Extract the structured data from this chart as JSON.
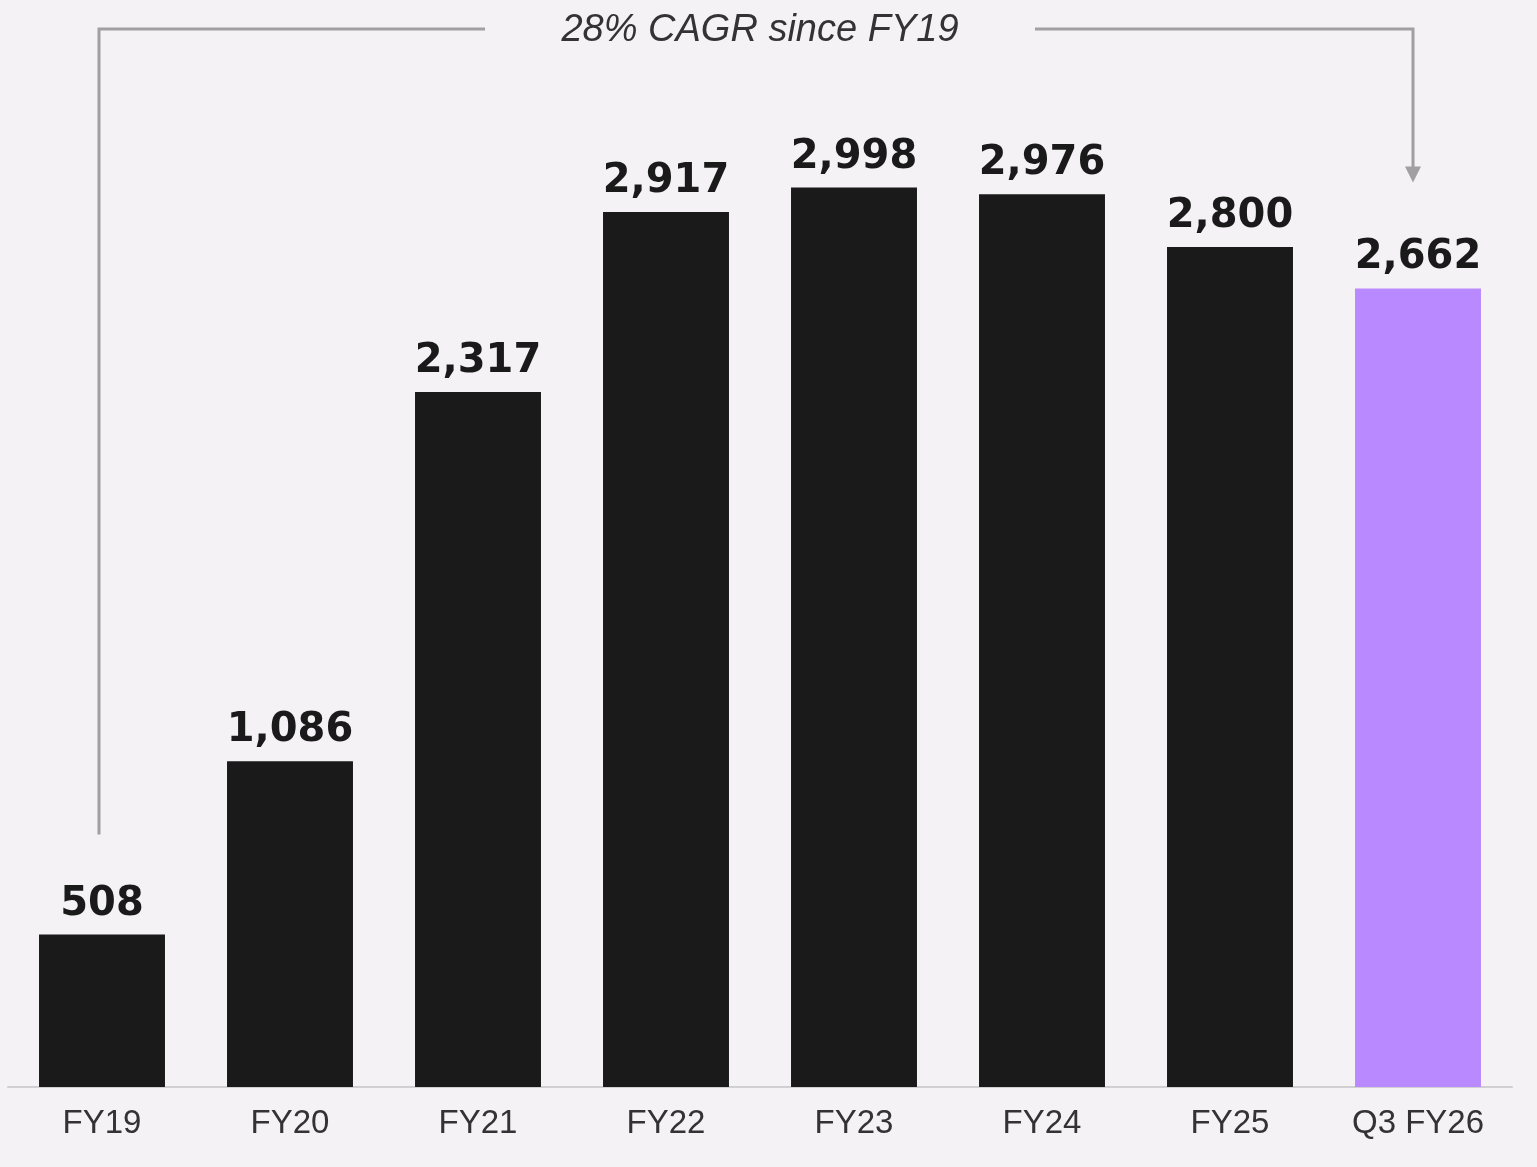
{
  "chart_data": {
    "type": "bar",
    "categories": [
      "FY19",
      "FY20",
      "FY21",
      "FY22",
      "FY23",
      "FY24",
      "FY25",
      "Q3 FY26"
    ],
    "values": [
      508,
      1086,
      2317,
      2917,
      2998,
      2976,
      2800,
      2662
    ],
    "colors": [
      "#1a1a1a",
      "#1a1a1a",
      "#1a1a1a",
      "#1a1a1a",
      "#1a1a1a",
      "#1a1a1a",
      "#1a1a1a",
      "#b98aff"
    ],
    "value_labels": [
      "508",
      "1,086",
      "2,317",
      "2,917",
      "2,998",
      "2,976",
      "2,800",
      "2,662"
    ],
    "tick_labels": "x",
    "annotations": [
      "28% CAGR since FY19"
    ]
  }
}
